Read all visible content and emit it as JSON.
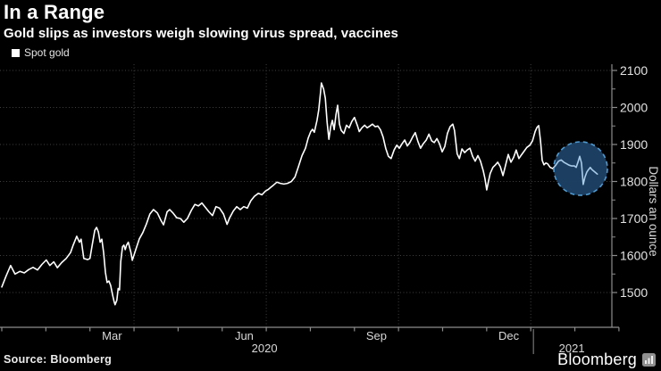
{
  "header": {
    "title": "In a Range",
    "subtitle": "Gold slips as investors weigh slowing virus spread, vaccines"
  },
  "legend": {
    "label": "Spot gold",
    "marker_color": "#ffffff"
  },
  "footer": {
    "source": "Source: Bloomberg",
    "brand": "Bloomberg"
  },
  "colors": {
    "background": "#000000",
    "line": "#ffffff",
    "axis": "#8c8c8c",
    "grid": "#3f3f3f",
    "tick_text": "#e3e3e3",
    "month_text": "#d9d9d9",
    "highlight_fill": "#1d4265",
    "highlight_stroke": "#4f9ad0",
    "highlight_line_tint": "#a9cbe8"
  },
  "chart_data": {
    "type": "line",
    "title": "Spot gold",
    "ylabel": "Dollars an ounce",
    "xlabel": "",
    "x_unit": "months since 2020-01-01",
    "x_total_months": 14,
    "ylim": [
      1405,
      2115
    ],
    "y_ticks": [
      1500,
      1600,
      1700,
      1800,
      1900,
      2000,
      2100
    ],
    "y_minor_step": 50,
    "grid_x_months": [
      3,
      6,
      9,
      12
    ],
    "month_labels": [
      {
        "label": "Mar",
        "month_center": 2.5
      },
      {
        "label": "Jun",
        "month_center": 5.5
      },
      {
        "label": "Sep",
        "month_center": 8.5
      },
      {
        "label": "Dec",
        "month_center": 11.5
      }
    ],
    "year_labels": [
      {
        "label": "2020",
        "month": 5.96
      },
      {
        "label": "2021",
        "month": 12.93
      }
    ],
    "year_separator_month": 12.06,
    "legend_position": "top-left",
    "grid": "dotted",
    "series": [
      {
        "name": "Spot gold",
        "color": "#ffffff",
        "points": [
          [
            0,
            1515
          ],
          [
            0.1,
            1545
          ],
          [
            0.2,
            1573
          ],
          [
            0.3,
            1550
          ],
          [
            0.41,
            1557
          ],
          [
            0.51,
            1553
          ],
          [
            0.61,
            1562
          ],
          [
            0.71,
            1568
          ],
          [
            0.81,
            1561
          ],
          [
            0.91,
            1576
          ],
          [
            1.01,
            1588
          ],
          [
            1.09,
            1573
          ],
          [
            1.18,
            1583
          ],
          [
            1.26,
            1567
          ],
          [
            1.36,
            1581
          ],
          [
            1.46,
            1592
          ],
          [
            1.56,
            1608
          ],
          [
            1.62,
            1628
          ],
          [
            1.7,
            1652
          ],
          [
            1.76,
            1636
          ],
          [
            1.8,
            1644
          ],
          [
            1.86,
            1592
          ],
          [
            1.95,
            1589
          ],
          [
            2.0,
            1592
          ],
          [
            2.05,
            1628
          ],
          [
            2.11,
            1668
          ],
          [
            2.15,
            1676
          ],
          [
            2.19,
            1664
          ],
          [
            2.23,
            1636
          ],
          [
            2.27,
            1644
          ],
          [
            2.31,
            1608
          ],
          [
            2.35,
            1555
          ],
          [
            2.39,
            1527
          ],
          [
            2.43,
            1531
          ],
          [
            2.47,
            1519
          ],
          [
            2.51,
            1495
          ],
          [
            2.55,
            1475
          ],
          [
            2.57,
            1467
          ],
          [
            2.61,
            1479
          ],
          [
            2.64,
            1511
          ],
          [
            2.67,
            1507
          ],
          [
            2.7,
            1584
          ],
          [
            2.74,
            1624
          ],
          [
            2.77,
            1628
          ],
          [
            2.8,
            1616
          ],
          [
            2.83,
            1628
          ],
          [
            2.87,
            1636
          ],
          [
            2.93,
            1608
          ],
          [
            2.96,
            1587
          ],
          [
            3.04,
            1616
          ],
          [
            3.12,
            1645
          ],
          [
            3.2,
            1662
          ],
          [
            3.28,
            1685
          ],
          [
            3.36,
            1712
          ],
          [
            3.44,
            1724
          ],
          [
            3.53,
            1715
          ],
          [
            3.61,
            1695
          ],
          [
            3.67,
            1683
          ],
          [
            3.75,
            1718
          ],
          [
            3.81,
            1724
          ],
          [
            3.89,
            1714
          ],
          [
            3.97,
            1702
          ],
          [
            4.05,
            1700
          ],
          [
            4.13,
            1690
          ],
          [
            4.21,
            1700
          ],
          [
            4.3,
            1722
          ],
          [
            4.38,
            1738
          ],
          [
            4.46,
            1734
          ],
          [
            4.54,
            1742
          ],
          [
            4.62,
            1730
          ],
          [
            4.7,
            1718
          ],
          [
            4.78,
            1708
          ],
          [
            4.86,
            1732
          ],
          [
            4.94,
            1728
          ],
          [
            5.03,
            1712
          ],
          [
            5.11,
            1684
          ],
          [
            5.17,
            1702
          ],
          [
            5.25,
            1720
          ],
          [
            5.33,
            1732
          ],
          [
            5.41,
            1724
          ],
          [
            5.49,
            1732
          ],
          [
            5.57,
            1728
          ],
          [
            5.65,
            1748
          ],
          [
            5.73,
            1760
          ],
          [
            5.82,
            1768
          ],
          [
            5.9,
            1764
          ],
          [
            5.98,
            1774
          ],
          [
            6.04,
            1778
          ],
          [
            6.1,
            1784
          ],
          [
            6.16,
            1790
          ],
          [
            6.24,
            1798
          ],
          [
            6.32,
            1795
          ],
          [
            6.4,
            1793
          ],
          [
            6.48,
            1795
          ],
          [
            6.57,
            1800
          ],
          [
            6.65,
            1812
          ],
          [
            6.73,
            1840
          ],
          [
            6.81,
            1870
          ],
          [
            6.89,
            1890
          ],
          [
            6.95,
            1917
          ],
          [
            7.01,
            1935
          ],
          [
            7.05,
            1941
          ],
          [
            7.09,
            1933
          ],
          [
            7.15,
            1965
          ],
          [
            7.19,
            1993
          ],
          [
            7.23,
            2040
          ],
          [
            7.25,
            2066
          ],
          [
            7.3,
            2050
          ],
          [
            7.34,
            2025
          ],
          [
            7.38,
            1960
          ],
          [
            7.42,
            1914
          ],
          [
            7.46,
            1948
          ],
          [
            7.5,
            1965
          ],
          [
            7.54,
            1940
          ],
          [
            7.58,
            1980
          ],
          [
            7.62,
            2006
          ],
          [
            7.66,
            1955
          ],
          [
            7.7,
            1938
          ],
          [
            7.76,
            1930
          ],
          [
            7.82,
            1952
          ],
          [
            7.88,
            1945
          ],
          [
            7.94,
            1962
          ],
          [
            8.0,
            1973
          ],
          [
            8.07,
            1950
          ],
          [
            8.11,
            1935
          ],
          [
            8.17,
            1945
          ],
          [
            8.23,
            1952
          ],
          [
            8.29,
            1945
          ],
          [
            8.35,
            1950
          ],
          [
            8.41,
            1955
          ],
          [
            8.47,
            1948
          ],
          [
            8.53,
            1950
          ],
          [
            8.59,
            1940
          ],
          [
            8.65,
            1920
          ],
          [
            8.71,
            1890
          ],
          [
            8.77,
            1868
          ],
          [
            8.83,
            1862
          ],
          [
            8.9,
            1885
          ],
          [
            8.96,
            1898
          ],
          [
            9.02,
            1890
          ],
          [
            9.08,
            1902
          ],
          [
            9.14,
            1912
          ],
          [
            9.2,
            1896
          ],
          [
            9.26,
            1906
          ],
          [
            9.32,
            1920
          ],
          [
            9.38,
            1932
          ],
          [
            9.44,
            1908
          ],
          [
            9.5,
            1890
          ],
          [
            9.56,
            1902
          ],
          [
            9.63,
            1912
          ],
          [
            9.69,
            1928
          ],
          [
            9.75,
            1910
          ],
          [
            9.81,
            1905
          ],
          [
            9.87,
            1916
          ],
          [
            9.93,
            1902
          ],
          [
            9.99,
            1880
          ],
          [
            10.05,
            1895
          ],
          [
            10.11,
            1930
          ],
          [
            10.17,
            1948
          ],
          [
            10.23,
            1955
          ],
          [
            10.27,
            1938
          ],
          [
            10.33,
            1875
          ],
          [
            10.38,
            1862
          ],
          [
            10.44,
            1888
          ],
          [
            10.5,
            1878
          ],
          [
            10.56,
            1885
          ],
          [
            10.62,
            1890
          ],
          [
            10.68,
            1868
          ],
          [
            10.74,
            1855
          ],
          [
            10.8,
            1870
          ],
          [
            10.86,
            1855
          ],
          [
            10.92,
            1830
          ],
          [
            10.96,
            1808
          ],
          [
            11.0,
            1777
          ],
          [
            11.04,
            1800
          ],
          [
            11.08,
            1822
          ],
          [
            11.14,
            1838
          ],
          [
            11.2,
            1845
          ],
          [
            11.25,
            1852
          ],
          [
            11.31,
            1840
          ],
          [
            11.37,
            1816
          ],
          [
            11.43,
            1845
          ],
          [
            11.49,
            1873
          ],
          [
            11.55,
            1852
          ],
          [
            11.61,
            1865
          ],
          [
            11.67,
            1885
          ],
          [
            11.73,
            1862
          ],
          [
            11.79,
            1872
          ],
          [
            11.85,
            1882
          ],
          [
            11.91,
            1892
          ],
          [
            11.98,
            1898
          ],
          [
            12.04,
            1910
          ],
          [
            12.1,
            1935
          ],
          [
            12.14,
            1946
          ],
          [
            12.18,
            1951
          ],
          [
            12.22,
            1910
          ],
          [
            12.26,
            1857
          ],
          [
            12.3,
            1845
          ],
          [
            12.34,
            1850
          ],
          [
            12.38,
            1848
          ],
          [
            12.44,
            1838
          ],
          [
            12.5,
            1835
          ],
          [
            12.56,
            1843
          ],
          [
            12.63,
            1855
          ],
          [
            12.69,
            1858
          ],
          [
            12.75,
            1852
          ],
          [
            12.81,
            1848
          ],
          [
            12.87,
            1844
          ],
          [
            12.93,
            1842
          ],
          [
            12.99,
            1842
          ],
          [
            13.03,
            1838
          ],
          [
            13.07,
            1852
          ],
          [
            13.11,
            1868
          ],
          [
            13.15,
            1850
          ],
          [
            13.19,
            1792
          ],
          [
            13.23,
            1812
          ],
          [
            13.27,
            1825
          ],
          [
            13.31,
            1832
          ],
          [
            13.35,
            1838
          ],
          [
            13.39,
            1832
          ],
          [
            13.45,
            1826
          ],
          [
            13.51,
            1820
          ]
        ]
      }
    ],
    "annotation": {
      "type": "circle",
      "center_month": 13.13,
      "center_value": 1835,
      "radius_px": 30
    }
  }
}
